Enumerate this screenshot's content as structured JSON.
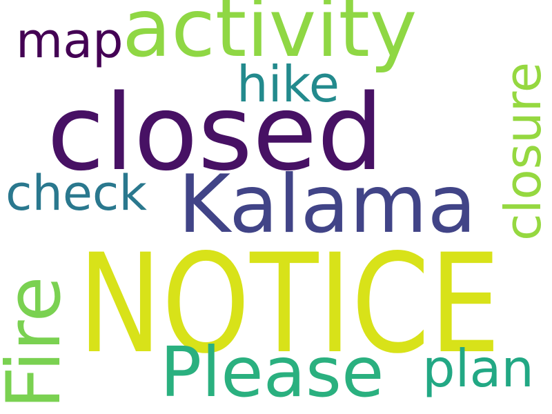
{
  "word_cloud": {
    "background": "#ffffff",
    "words": [
      {
        "key": "notice",
        "text": "NOTICE",
        "color": "#d8e219",
        "rotated": false
      },
      {
        "key": "closed",
        "text": "closed",
        "color": "#471164",
        "rotated": false
      },
      {
        "key": "activity",
        "text": "activity",
        "color": "#8fd744",
        "rotated": false
      },
      {
        "key": "kalama",
        "text": "Kalama",
        "color": "#414487",
        "rotated": false
      },
      {
        "key": "please",
        "text": "Please",
        "color": "#2ab07f",
        "rotated": false
      },
      {
        "key": "fire",
        "text": "Fire",
        "color": "#7ad151",
        "rotated": true
      },
      {
        "key": "closure",
        "text": "closure",
        "color": "#95d840",
        "rotated": true
      },
      {
        "key": "check",
        "text": "check",
        "color": "#2a788e",
        "rotated": false
      },
      {
        "key": "plan",
        "text": "plan",
        "color": "#22a884",
        "rotated": false
      },
      {
        "key": "hike",
        "text": "hike",
        "color": "#238a8d",
        "rotated": false
      },
      {
        "key": "map",
        "text": "map",
        "color": "#440154",
        "rotated": false
      }
    ]
  }
}
